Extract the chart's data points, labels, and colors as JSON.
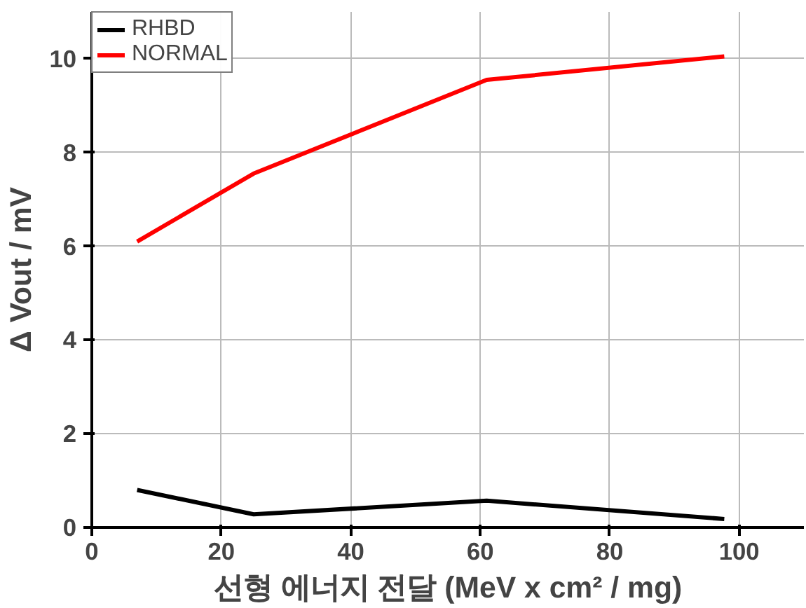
{
  "chart_data": {
    "type": "line",
    "xlabel": "선형 에너지 전달 (MeV x cm² / mg)",
    "ylabel": "Δ Vout / mV",
    "x": [
      7,
      25,
      61,
      97.7
    ],
    "series": [
      {
        "name": "RHBD",
        "color": "#000000",
        "values": [
          0.8,
          0.28,
          0.57,
          0.18
        ]
      },
      {
        "name": "NORMAL",
        "color": "#ff0000",
        "values": [
          6.1,
          7.55,
          9.55,
          10.05
        ]
      }
    ],
    "xlim": [
      0,
      110
    ],
    "xticks": [
      0,
      20,
      40,
      60,
      80,
      100
    ],
    "ylim": [
      0,
      11
    ],
    "yticks": [
      0,
      2,
      4,
      6,
      8,
      10
    ],
    "grid": true,
    "legend": "top left",
    "marker": "none",
    "line_style": "solid"
  }
}
